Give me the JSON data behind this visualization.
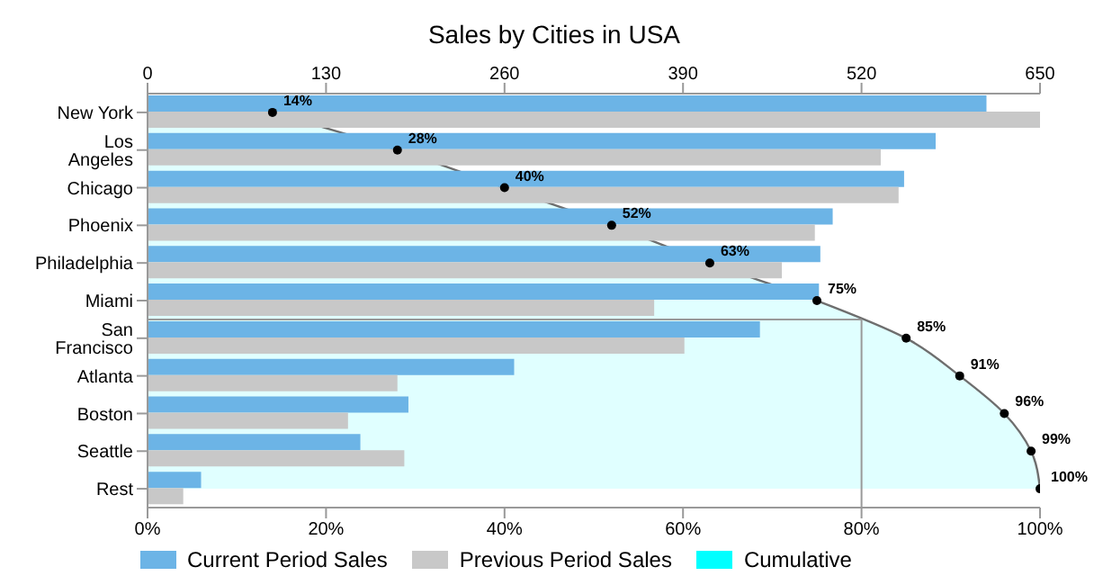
{
  "chart_data": {
    "type": "bar",
    "orientation": "horizontal",
    "title": "Sales by Cities in USA",
    "categories": [
      "New York",
      "Los Angeles",
      "Chicago",
      "Phoenix",
      "Philadelphia",
      "Miami",
      "San Francisco",
      "Atlanta",
      "Boston",
      "Seattle",
      "Rest"
    ],
    "series": [
      {
        "name": "Current Period Sales",
        "color": "#6cb4e6",
        "axis": "x2",
        "values": [
          611,
          574,
          551,
          499,
          490,
          489,
          446,
          267,
          190,
          155,
          39
        ]
      },
      {
        "name": "Previous Period Sales",
        "color": "#c8c8c8",
        "axis": "x2",
        "values": [
          650,
          534,
          547,
          486,
          462,
          369,
          391,
          182,
          146,
          187,
          26
        ]
      },
      {
        "name": "Cumulative",
        "type": "area",
        "color": "#00ffff",
        "marker": "circle",
        "values": [
          14,
          28,
          40,
          52,
          63,
          75,
          85,
          91,
          96,
          99,
          100
        ],
        "value_labels": [
          "14%",
          "28%",
          "40%",
          "52%",
          "63%",
          "75%",
          "85%",
          "91%",
          "96%",
          "99%",
          "100%"
        ]
      }
    ],
    "xlim": [
      0,
      100
    ],
    "xticks": [
      {
        "value": 0,
        "label": "0%"
      },
      {
        "value": 20,
        "label": "20%"
      },
      {
        "value": 40,
        "label": "40%"
      },
      {
        "value": 60,
        "label": "60%"
      },
      {
        "value": 80,
        "label": "80%"
      },
      {
        "value": 100,
        "label": "100%"
      }
    ],
    "x2lim": [
      0,
      650
    ],
    "x2ticks": [
      0,
      130,
      260,
      390,
      520,
      650
    ],
    "ref_lines": [
      {
        "axis": "x",
        "value": 80,
        "color": "#999999"
      }
    ],
    "legend": "bottom"
  }
}
